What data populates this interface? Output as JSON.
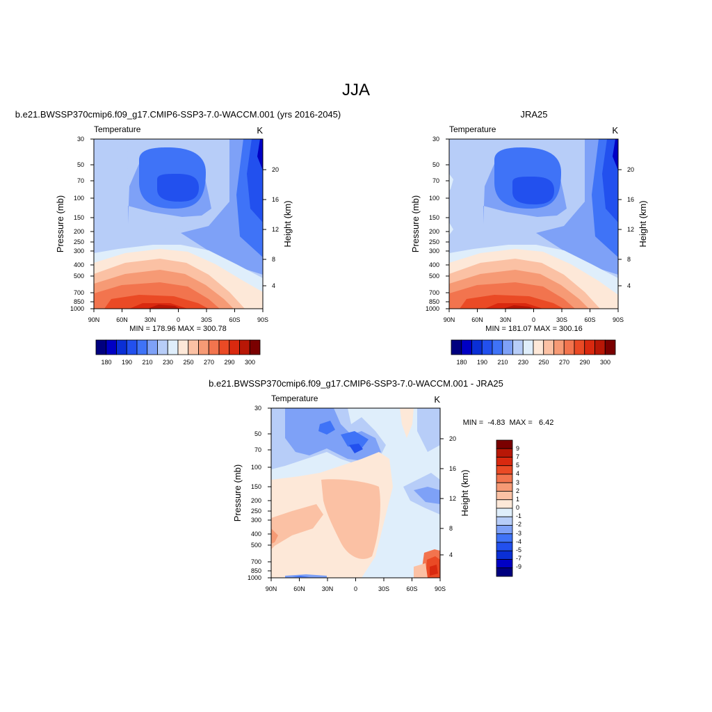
{
  "figure": {
    "title": "JJA"
  },
  "colors": {
    "temperature_scale": [
      "#00007f",
      "#0000c4",
      "#0a2fd6",
      "#2250ee",
      "#3f73f7",
      "#7ea1f7",
      "#b7cdf8",
      "#dfeefb",
      "#fde8d8",
      "#fbc1a4",
      "#f69a75",
      "#f2744e",
      "#ea4a25",
      "#d9290f",
      "#b81706",
      "#7a0000"
    ],
    "diff_scale": [
      "#00007f",
      "#0000c4",
      "#0a2fd6",
      "#2250ee",
      "#3f73f7",
      "#7ea1f7",
      "#b7cdf8",
      "#dfeefb",
      "#fde8d8",
      "#fbc1a4",
      "#f69a75",
      "#f2744e",
      "#ea4a25",
      "#d9290f",
      "#b81706",
      "#7a0000"
    ]
  },
  "chart_data": [
    {
      "type": "heatmap",
      "id": "model",
      "title": "b.e21.BWSSP370cmip6.f09_g17.CMIP6-SSP3-7.0-WACCM.001 (yrs 2016-2045)",
      "left_label": "Temperature",
      "right_label": "K",
      "ylabel": "Pressure (mb)",
      "y2label": "Height (km)",
      "x_ticks": [
        "90N",
        "60N",
        "30N",
        "0",
        "30S",
        "60S",
        "90S"
      ],
      "y_ticks": [
        "30",
        "50",
        "70",
        "100",
        "150",
        "200",
        "250",
        "300",
        "400",
        "500",
        "700",
        "850",
        "1000"
      ],
      "y2_ticks": [
        "20",
        "16",
        "12",
        "8",
        "4"
      ],
      "stats": "MIN = 178.96  MAX = 300.78",
      "min": 178.96,
      "max": 300.78,
      "colorbar_labels": [
        "180",
        "190",
        "210",
        "230",
        "250",
        "270",
        "290",
        "300"
      ]
    },
    {
      "type": "heatmap",
      "id": "obs",
      "title": "JRA25",
      "left_label": "Temperature",
      "right_label": "K",
      "ylabel": "Pressure (mb)",
      "y2label": "Height (km)",
      "x_ticks": [
        "90N",
        "60N",
        "30N",
        "0",
        "30S",
        "60S",
        "90S"
      ],
      "y_ticks": [
        "30",
        "50",
        "70",
        "100",
        "150",
        "200",
        "250",
        "300",
        "400",
        "500",
        "700",
        "850",
        "1000"
      ],
      "y2_ticks": [
        "20",
        "16",
        "12",
        "8",
        "4"
      ],
      "stats": "MIN = 181.07  MAX = 300.16",
      "min": 181.07,
      "max": 300.16,
      "colorbar_labels": [
        "180",
        "190",
        "210",
        "230",
        "250",
        "270",
        "290",
        "300"
      ]
    },
    {
      "type": "heatmap",
      "id": "diff",
      "title": "b.e21.BWSSP370cmip6.f09_g17.CMIP6-SSP3-7.0-WACCM.001 - JRA25",
      "left_label": "Temperature",
      "right_label": "K",
      "ylabel": "Pressure (mb)",
      "y2label": "Height (km)",
      "x_ticks": [
        "90N",
        "60N",
        "30N",
        "0",
        "30S",
        "60S",
        "90S"
      ],
      "y_ticks": [
        "30",
        "50",
        "70",
        "100",
        "150",
        "200",
        "250",
        "300",
        "400",
        "500",
        "700",
        "850",
        "1000"
      ],
      "y2_ticks": [
        "20",
        "16",
        "12",
        "8",
        "4"
      ],
      "stats": "MIN =  -4.83  MAX =   6.42",
      "min": -4.83,
      "max": 6.42,
      "colorbar_labels": [
        "9",
        "7",
        "5",
        "4",
        "3",
        "2",
        "1",
        "0",
        "-1",
        "-2",
        "-3",
        "-4",
        "-5",
        "-7",
        "-9"
      ]
    }
  ]
}
